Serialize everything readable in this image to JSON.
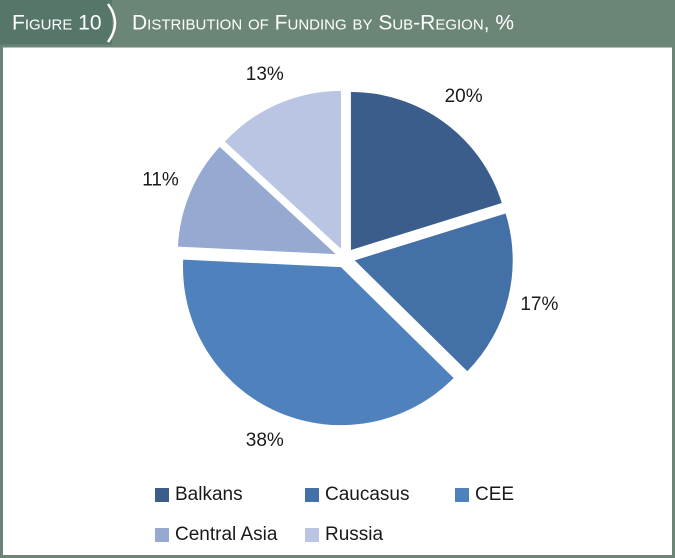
{
  "chart_data": {
    "type": "pie",
    "figure_label": "Figure 10",
    "title": "Distribution of Funding by Sub-Region, %",
    "categories": [
      "Balkans",
      "Caucasus",
      "CEE",
      "Central Asia",
      "Russia"
    ],
    "values": [
      20,
      17,
      38,
      11,
      13
    ],
    "value_labels": [
      "20%",
      "17%",
      "38%",
      "11%",
      "13%"
    ],
    "colors": [
      "#3a5d8c",
      "#4470a8",
      "#4f81bd",
      "#95a9d1",
      "#b9c5e2"
    ],
    "legend": "bottom"
  }
}
